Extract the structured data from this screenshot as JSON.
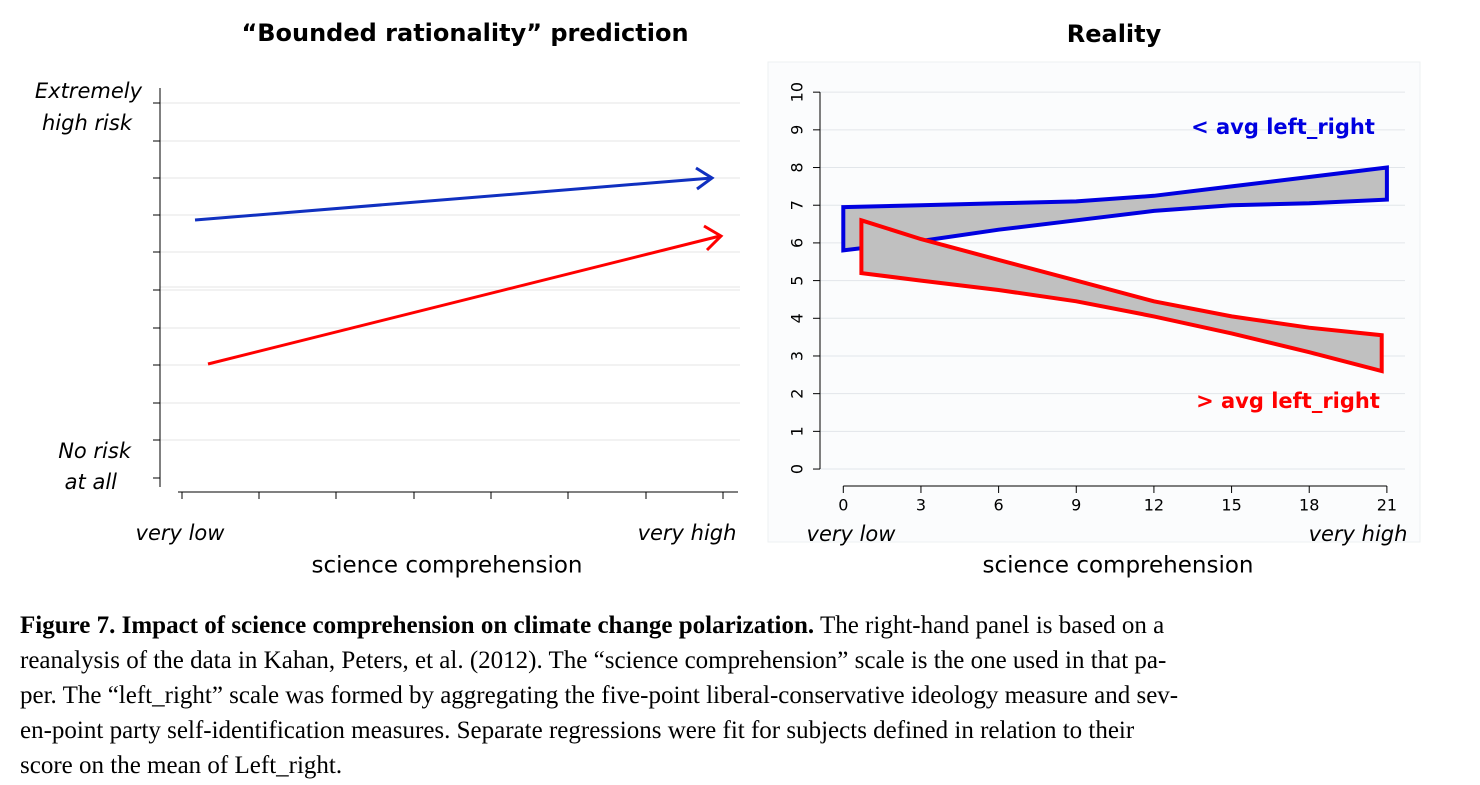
{
  "concept_panel": {
    "title": "“Bounded rationality” prediction",
    "y_top_label": [
      "Extremely",
      "high risk"
    ],
    "y_bottom_label": [
      "No risk",
      "at all"
    ],
    "x_end_labels": [
      "very low",
      "very high"
    ],
    "x_label": "science comprehension"
  },
  "chart_data": {
    "type": "band",
    "title": "Reality",
    "x_label": "science comprehension",
    "x_end_labels": [
      "very low",
      "very high"
    ],
    "xlim": [
      -0.9,
      21.7
    ],
    "ylim": [
      -0.45,
      10.8
    ],
    "xticks": [
      0,
      3,
      6,
      9,
      12,
      15,
      18,
      21
    ],
    "yticks": [
      0,
      1,
      2,
      3,
      4,
      5,
      6,
      7,
      8,
      9,
      10
    ],
    "grid": true,
    "band_fill": "#c0c0c0",
    "series": [
      {
        "name": "< avg left_right",
        "color": "#0000e0",
        "x": [
          0,
          3,
          6,
          9,
          12,
          15,
          18,
          21
        ],
        "upper": [
          6.95,
          7.0,
          7.05,
          7.1,
          7.25,
          7.5,
          7.75,
          8.0
        ],
        "lower": [
          5.8,
          6.05,
          6.35,
          6.6,
          6.85,
          7.0,
          7.05,
          7.15
        ]
      },
      {
        "name": "> avg left_right",
        "color": "#ff0000",
        "x": [
          0.7,
          3,
          6,
          9,
          12,
          15,
          18,
          20.8
        ],
        "upper": [
          6.6,
          6.1,
          5.55,
          5.0,
          4.45,
          4.05,
          3.75,
          3.55
        ],
        "lower": [
          5.2,
          5.0,
          4.75,
          4.45,
          4.05,
          3.6,
          3.1,
          2.6
        ]
      }
    ]
  },
  "caption": {
    "label": "Figure 7. Impact of science comprehension on climate change polarization.",
    "lines": [
      " The right-hand panel is based on a",
      "reanalysis of the data in Kahan, Peters, et al. (2012). The “science comprehension” scale is the one used in that pa-",
      "per. The “left_right” scale was formed by aggregating the five-point liberal-conservative ideology measure and sev-",
      "en-point party self-identification measures. Separate regressions were fit for subjects defined in relation to their",
      "score on the mean of Left_right."
    ]
  }
}
